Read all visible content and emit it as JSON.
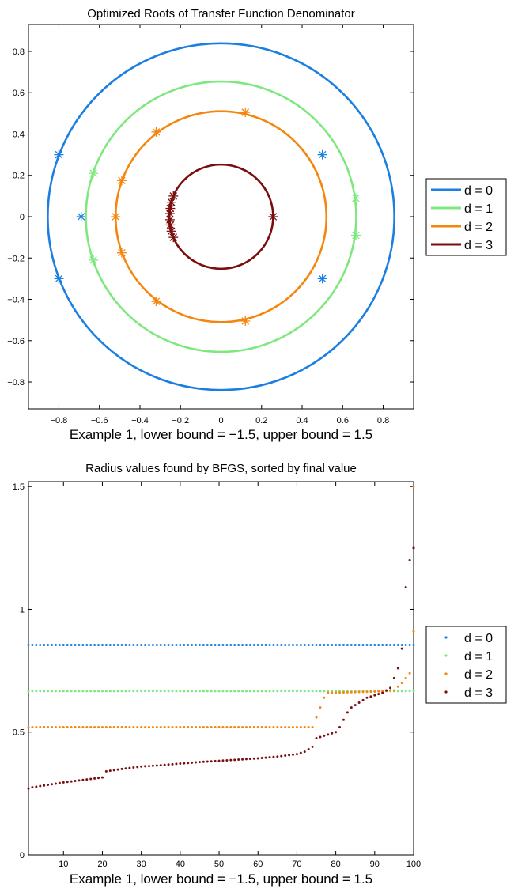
{
  "chart_data": [
    {
      "type": "scatter",
      "title": "Optimized Roots of Transfer Function Denominator",
      "xlabel": "Example 1, lower bound = −1.5, upper bound = 1.5",
      "ylabel": "",
      "xlim": [
        -0.95,
        0.95
      ],
      "ylim": [
        -0.93,
        0.93
      ],
      "xticks": [
        -0.8,
        -0.6,
        -0.4,
        -0.2,
        0,
        0.2,
        0.4,
        0.6,
        0.8
      ],
      "xtick_labels": [
        "−0.8",
        "−0.6",
        "−0.4",
        "−0.2",
        "0",
        "0.2",
        "0.4",
        "0.6",
        "0.8"
      ],
      "yticks": [
        0.8,
        0.6,
        0.4,
        0.2,
        0,
        -0.2,
        -0.4,
        -0.6,
        -0.8
      ],
      "ytick_labels": [
        "0.8",
        "0.6",
        "0.4",
        "0.2",
        "0",
        "−0.2",
        "−0.4",
        "−0.6",
        "−0.8"
      ],
      "legend": "outside-right",
      "series": [
        {
          "name": "d = 0",
          "color": "#1a7fe0",
          "radius": 0.855,
          "roots": [
            [
              -0.8,
              0.3
            ],
            [
              -0.8,
              -0.3
            ],
            [
              -0.69,
              0.0
            ],
            [
              0.5,
              0.3
            ],
            [
              0.5,
              -0.3
            ]
          ]
        },
        {
          "name": "d = 1",
          "color": "#7ee87e",
          "radius": 0.667,
          "roots": [
            [
              -0.63,
              0.21
            ],
            [
              -0.63,
              -0.21
            ],
            [
              0.665,
              0.09
            ],
            [
              0.665,
              -0.09
            ]
          ]
        },
        {
          "name": "d = 2",
          "color": "#f4860e",
          "radius": 0.52,
          "roots": [
            [
              -0.52,
              0.0
            ],
            [
              -0.49,
              0.175
            ],
            [
              -0.49,
              -0.175
            ],
            [
              -0.32,
              0.41
            ],
            [
              -0.32,
              -0.41
            ],
            [
              0.12,
              0.505
            ],
            [
              0.12,
              -0.505
            ]
          ]
        },
        {
          "name": "d = 3",
          "color": "#7a0e0e",
          "radius": 0.257,
          "roots": [
            [
              0.257,
              0.0
            ],
            [
              -0.235,
              0.1
            ],
            [
              -0.235,
              -0.1
            ],
            [
              -0.245,
              0.07
            ],
            [
              -0.245,
              -0.07
            ],
            [
              -0.25,
              0.04
            ],
            [
              -0.25,
              -0.04
            ],
            [
              -0.252,
              0.015
            ],
            [
              -0.252,
              -0.015
            ]
          ]
        }
      ]
    },
    {
      "type": "scatter",
      "title": "Radius values found by BFGS, sorted by final value",
      "xlabel": "Example 1, lower bound = −1.5, upper bound = 1.5",
      "ylabel": "",
      "xlim": [
        1,
        100
      ],
      "ylim": [
        0,
        1.52
      ],
      "xticks": [
        10,
        20,
        30,
        40,
        50,
        60,
        70,
        80,
        90,
        100
      ],
      "xtick_labels": [
        "10",
        "20",
        "30",
        "40",
        "50",
        "60",
        "70",
        "80",
        "90",
        "100"
      ],
      "yticks": [
        1.5,
        1,
        0.5,
        0
      ],
      "ytick_labels": [
        "1.5",
        "1",
        "0.5",
        "0"
      ],
      "legend": "outside-right",
      "series": [
        {
          "name": "d = 0",
          "color": "#1a7fe0",
          "points": [
            [
              1,
              0.855
            ],
            [
              100,
              0.855
            ]
          ],
          "constant": 0.855
        },
        {
          "name": "d = 1",
          "color": "#7ee87e",
          "points": [
            [
              1,
              0.667
            ],
            [
              100,
              0.667
            ]
          ],
          "constant": 0.667
        },
        {
          "name": "d = 2",
          "color": "#f4860e",
          "points": [
            [
              1,
              0.52
            ],
            [
              74,
              0.52
            ],
            [
              75,
              0.56
            ],
            [
              76,
              0.6
            ],
            [
              77,
              0.64
            ],
            [
              78,
              0.66
            ],
            [
              90,
              0.665
            ],
            [
              95,
              0.67
            ],
            [
              97,
              0.7
            ],
            [
              99,
              0.74
            ],
            [
              100,
              0.91
            ],
            [
              100,
              1.5
            ]
          ]
        },
        {
          "name": "d = 3",
          "color": "#7a0e0e",
          "points": [
            [
              1,
              0.27
            ],
            [
              2,
              0.275
            ],
            [
              6,
              0.285
            ],
            [
              10,
              0.295
            ],
            [
              15,
              0.305
            ],
            [
              20,
              0.315
            ],
            [
              21,
              0.34
            ],
            [
              25,
              0.35
            ],
            [
              30,
              0.36
            ],
            [
              35,
              0.365
            ],
            [
              40,
              0.372
            ],
            [
              45,
              0.378
            ],
            [
              50,
              0.383
            ],
            [
              55,
              0.388
            ],
            [
              60,
              0.393
            ],
            [
              65,
              0.4
            ],
            [
              70,
              0.41
            ],
            [
              72,
              0.42
            ],
            [
              74,
              0.44
            ],
            [
              75,
              0.475
            ],
            [
              78,
              0.49
            ],
            [
              80,
              0.5
            ],
            [
              81,
              0.52
            ],
            [
              82,
              0.55
            ],
            [
              83,
              0.58
            ],
            [
              84,
              0.6
            ],
            [
              86,
              0.62
            ],
            [
              88,
              0.64
            ],
            [
              90,
              0.65
            ],
            [
              92,
              0.66
            ],
            [
              94,
              0.68
            ],
            [
              95,
              0.72
            ],
            [
              96,
              0.76
            ],
            [
              97,
              0.84
            ],
            [
              98,
              1.09
            ],
            [
              99,
              1.2
            ],
            [
              100,
              1.25
            ]
          ]
        }
      ]
    }
  ]
}
